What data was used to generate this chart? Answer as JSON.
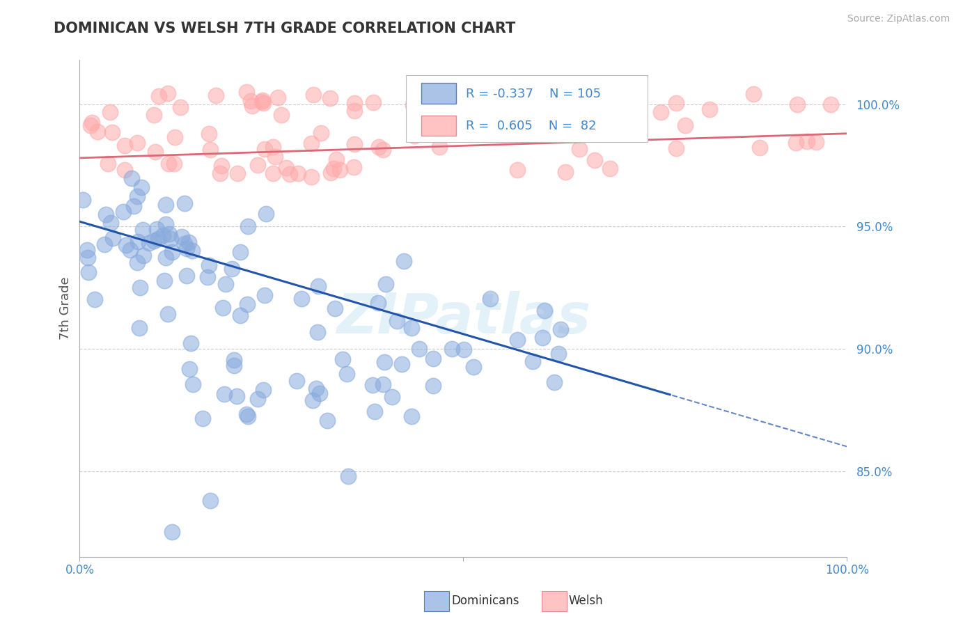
{
  "title": "DOMINICAN VS WELSH 7TH GRADE CORRELATION CHART",
  "source": "Source: ZipAtlas.com",
  "ylabel": "7th Grade",
  "dominican_R": -0.337,
  "dominican_N": 105,
  "welsh_R": 0.605,
  "welsh_N": 82,
  "dominican_color": "#88AADD",
  "welsh_color": "#FFAAAA",
  "dominican_line_color": "#2255AA",
  "welsh_line_color": "#DD6677",
  "watermark": "ZIPatlas",
  "legend_dominicans": "Dominicans",
  "legend_welsh": "Welsh",
  "background_color": "#ffffff",
  "grid_color": "#cccccc",
  "ytick_color": "#4488CC",
  "xlim": [
    0.0,
    1.0
  ],
  "ylim": [
    0.815,
    1.018
  ],
  "ytick_vals": [
    0.85,
    0.9,
    0.95,
    1.0
  ],
  "ytick_labels": [
    "85.0%",
    "90.0%",
    "95.0%",
    "100.0%"
  ]
}
